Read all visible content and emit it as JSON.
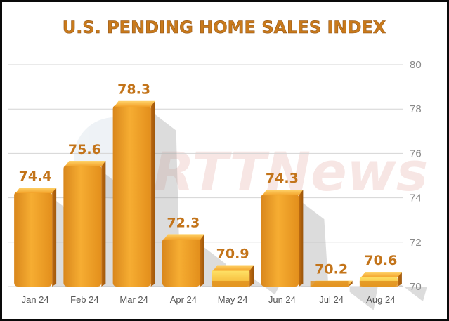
{
  "chart_data": {
    "type": "bar",
    "title": "U.S. PENDING HOME SALES INDEX",
    "categories": [
      "Jan 24",
      "Feb 24",
      "Mar 24",
      "Apr 24",
      "May 24",
      "Jun 24",
      "Jul 24",
      "Aug 24"
    ],
    "values": [
      74.4,
      75.6,
      78.3,
      72.3,
      70.9,
      74.3,
      70.2,
      70.6
    ],
    "data_labels": [
      "74.4",
      "75.6",
      "78.3",
      "72.3",
      "70.9",
      "74.3",
      "70.2",
      "70.6"
    ],
    "ylim": [
      70,
      80
    ],
    "yticks": [
      70,
      72,
      74,
      76,
      78,
      80
    ],
    "y_axis_side": "right",
    "grid": true,
    "legend": "none",
    "colors": {
      "bar_main": "#f4a62a",
      "bar_dark": "#c77412",
      "bar_light": "#ffe36a",
      "label": "#c3741a",
      "grid": "#d4d4d4",
      "tick": "#8a8a8a",
      "background": "#ffffff"
    },
    "watermark": "RTTNews"
  }
}
